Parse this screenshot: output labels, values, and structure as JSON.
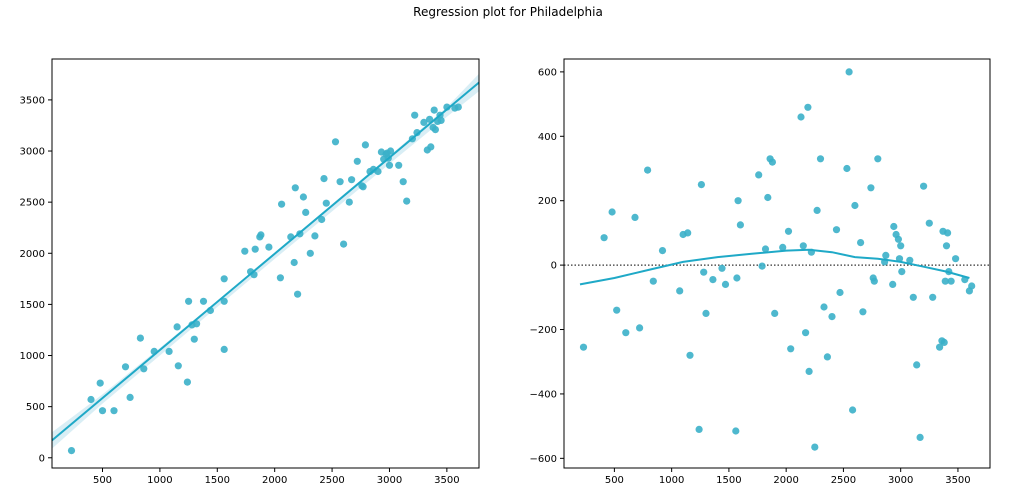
{
  "figure": {
    "title": "Regression plot for Philadelphia",
    "point_color": "#3bb0c9",
    "line_color": "#1fa9c7",
    "band_color": "#bfe3ee",
    "zero_line_color": "#333333"
  },
  "chart_data": [
    {
      "type": "scatter",
      "name": "regression",
      "xlim": [
        60,
        3780
      ],
      "ylim": [
        -100,
        3900
      ],
      "xticks": [
        500,
        1000,
        1500,
        2000,
        2500,
        3000,
        3500
      ],
      "yticks": [
        0,
        500,
        1000,
        1500,
        2000,
        2500,
        3000,
        3500
      ],
      "grid": false,
      "regression_line": {
        "x": [
          60,
          3780
        ],
        "y": [
          170,
          3670
        ]
      },
      "confidence_band": {
        "x": [
          60,
          500,
          1000,
          1500,
          2000,
          2500,
          3000,
          3500,
          3780
        ],
        "lower": [
          90,
          530,
          1000,
          1475,
          1945,
          2410,
          2875,
          3335,
          3585
        ],
        "upper": [
          250,
          620,
          1075,
          1535,
          2005,
          2480,
          2955,
          3430,
          3755
        ]
      },
      "points": {
        "x": [
          230,
          400,
          480,
          500,
          600,
          700,
          740,
          830,
          860,
          950,
          1080,
          1150,
          1160,
          1240,
          1250,
          1280,
          1300,
          1320,
          1380,
          1440,
          1560,
          1560,
          1560,
          1740,
          1790,
          1820,
          1830,
          1870,
          1880,
          1950,
          2050,
          2060,
          2140,
          2170,
          2180,
          2200,
          2220,
          2250,
          2270,
          2310,
          2350,
          2410,
          2430,
          2450,
          2530,
          2570,
          2600,
          2650,
          2670,
          2720,
          2760,
          2770,
          2790,
          2830,
          2860,
          2900,
          2930,
          2950,
          2970,
          2980,
          2990,
          3000,
          3010,
          3080,
          3120,
          3150,
          3200,
          3220,
          3240,
          3300,
          3330,
          3350,
          3360,
          3380,
          3390,
          3400,
          3420,
          3440,
          3450,
          3500,
          3570,
          3600
        ],
        "y": [
          70,
          570,
          730,
          460,
          460,
          890,
          590,
          1170,
          870,
          1040,
          1040,
          1280,
          900,
          740,
          1530,
          1300,
          1160,
          1310,
          1530,
          1440,
          1750,
          1530,
          1060,
          2020,
          1820,
          1790,
          2040,
          2160,
          2180,
          2060,
          1760,
          2480,
          2160,
          1910,
          2640,
          1600,
          2190,
          2550,
          2400,
          2000,
          2170,
          2330,
          2730,
          2490,
          3090,
          2700,
          2090,
          2500,
          2720,
          2900,
          2660,
          2650,
          3060,
          2800,
          2820,
          2800,
          2990,
          2920,
          2970,
          2980,
          2930,
          2860,
          3000,
          2860,
          2700,
          2510,
          3120,
          3350,
          3180,
          3280,
          3010,
          3310,
          3040,
          3230,
          3400,
          3210,
          3290,
          3350,
          3300,
          3430,
          3420,
          3430
        ]
      }
    },
    {
      "type": "scatter",
      "name": "residuals",
      "xlim": [
        60,
        3780
      ],
      "ylim": [
        -630,
        640
      ],
      "xticks": [
        500,
        1000,
        1500,
        2000,
        2500,
        3000,
        3500
      ],
      "yticks": [
        -600,
        -400,
        -200,
        0,
        200,
        400,
        600
      ],
      "grid": false,
      "zero_line": 0,
      "lowess_line": {
        "x": [
          200,
          500,
          800,
          1100,
          1400,
          1700,
          2000,
          2200,
          2400,
          2600,
          2800,
          3000,
          3200,
          3400,
          3600
        ],
        "y": [
          -60,
          -40,
          -15,
          10,
          25,
          35,
          45,
          48,
          40,
          25,
          20,
          10,
          -5,
          -20,
          -40
        ]
      },
      "points": {
        "x": [
          230,
          410,
          480,
          520,
          600,
          680,
          720,
          790,
          840,
          920,
          1070,
          1100,
          1140,
          1160,
          1240,
          1260,
          1280,
          1300,
          1360,
          1440,
          1470,
          1560,
          1570,
          1580,
          1600,
          1760,
          1790,
          1820,
          1840,
          1860,
          1880,
          1900,
          1970,
          2020,
          2040,
          2130,
          2150,
          2170,
          2190,
          2200,
          2220,
          2250,
          2270,
          2300,
          2330,
          2360,
          2400,
          2440,
          2470,
          2530,
          2550,
          2580,
          2600,
          2650,
          2670,
          2740,
          2760,
          2770,
          2800,
          2860,
          2870,
          2930,
          2940,
          2960,
          2980,
          2990,
          3000,
          3010,
          3080,
          3110,
          3140,
          3170,
          3200,
          3250,
          3280,
          3340,
          3360,
          3370,
          3380,
          3390,
          3400,
          3410,
          3420,
          3440,
          3480,
          3560,
          3600,
          3620
        ],
        "y": [
          -255,
          85,
          165,
          -140,
          -210,
          148,
          -195,
          295,
          -50,
          45,
          -80,
          95,
          100,
          -280,
          -510,
          250,
          -22,
          -150,
          -45,
          -10,
          -60,
          -515,
          -40,
          200,
          125,
          280,
          -3,
          50,
          210,
          330,
          320,
          -150,
          55,
          105,
          -260,
          460,
          60,
          -210,
          490,
          -330,
          40,
          -565,
          170,
          330,
          -130,
          -285,
          -160,
          110,
          -85,
          300,
          600,
          -450,
          185,
          70,
          -145,
          240,
          -40,
          -50,
          330,
          10,
          30,
          -60,
          120,
          95,
          80,
          20,
          60,
          -20,
          15,
          -100,
          -310,
          -535,
          245,
          130,
          -100,
          -255,
          -235,
          105,
          -240,
          -50,
          60,
          100,
          -20,
          -50,
          20,
          -45,
          -80,
          -65
        ]
      }
    }
  ]
}
